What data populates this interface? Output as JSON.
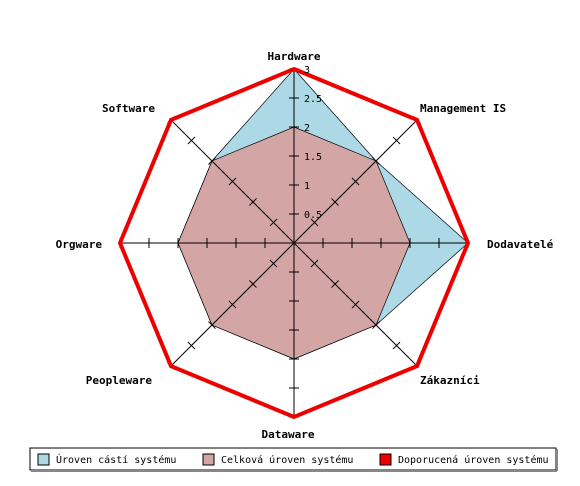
{
  "chart_data": {
    "type": "radar",
    "title": "",
    "axes": [
      "Hardware",
      "Management IS",
      "Dodavatelé",
      "Zákazníci",
      "Dataware",
      "Peopleware",
      "Orgware",
      "Software"
    ],
    "rlim": [
      0,
      3
    ],
    "ticks": [
      0.5,
      1,
      1.5,
      2,
      2.5,
      3
    ],
    "tick_labels": [
      "0.5",
      "1",
      "1.5",
      "2",
      "2.5",
      "3"
    ],
    "grid": false,
    "legend_position": "bottom",
    "series": [
      {
        "name": "Úroven cástí systému",
        "values": [
          3,
          2,
          3,
          2,
          2,
          2,
          2,
          2
        ],
        "color": "#add8e6",
        "fill": true
      },
      {
        "name": "Celková úroven systému",
        "values": [
          2,
          2,
          2,
          2,
          2,
          2,
          2,
          2
        ],
        "color": "#d4a5a5",
        "fill": true
      },
      {
        "name": "Doporucená úroven systému",
        "values": [
          3,
          3,
          3,
          3,
          3,
          3,
          3,
          3
        ],
        "color": "#ee0000",
        "fill": false
      }
    ]
  }
}
